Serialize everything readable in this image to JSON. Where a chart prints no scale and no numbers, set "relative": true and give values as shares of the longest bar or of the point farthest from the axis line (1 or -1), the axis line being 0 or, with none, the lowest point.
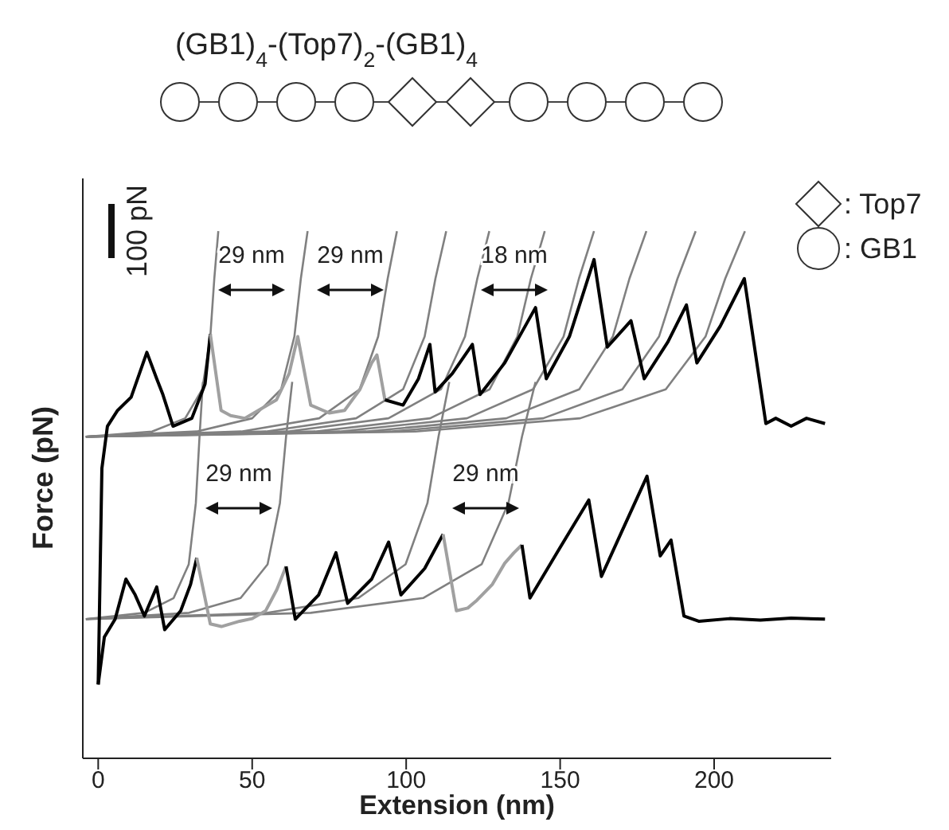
{
  "chart_data": {
    "type": "line",
    "title": "(GB1)$_{4}$-(Top7)$_{2}$-(GB1)$_{4}$",
    "xlabel": "Extension (nm)",
    "ylabel": "Force (pN)",
    "relative": true,
    "xlim": [
      -5,
      238
    ],
    "xticks": [
      0,
      50,
      100,
      150,
      200
    ],
    "grid": false,
    "legend": false,
    "marker": "none",
    "line_style": "solid",
    "annotations": [
      "100 pN",
      ": Top7",
      ": GB1",
      "29 nm",
      "29 nm",
      "18 nm",
      "29 nm",
      "29 nm"
    ],
    "series": [
      {
        "color": "#808080",
        "x": [
          -4,
          17.5,
          28.25,
          33.8,
          36.4,
          37.7,
          39
        ],
        "values": [
          0.61,
          0.62,
          0.645,
          0.7,
          0.8,
          0.91,
          1.0
        ]
      },
      {
        "color": "#808080",
        "x": [
          -4,
          32,
          50,
          59.4,
          63.7,
          65.8,
          68
        ],
        "values": [
          0.61,
          0.62,
          0.645,
          0.7,
          0.8,
          0.91,
          1.0
        ]
      },
      {
        "color": "#808080",
        "x": [
          -4,
          46.5,
          71.75,
          84.9,
          90.9,
          94,
          97
        ],
        "values": [
          0.61,
          0.62,
          0.645,
          0.7,
          0.8,
          0.91,
          1.0
        ]
      },
      {
        "color": "#808080",
        "x": [
          -4,
          54.5,
          83.75,
          99,
          106,
          109.5,
          113
        ],
        "values": [
          0.61,
          0.62,
          0.645,
          0.7,
          0.8,
          0.91,
          1.0
        ]
      },
      {
        "color": "#808080",
        "x": [
          -4,
          61.5,
          94.25,
          111.3,
          119.1,
          123.1,
          127
        ],
        "values": [
          0.61,
          0.62,
          0.645,
          0.7,
          0.8,
          0.91,
          1.0
        ]
      },
      {
        "color": "#808080",
        "x": [
          -4,
          70.5,
          107.75,
          127.1,
          136.1,
          140.5,
          145
        ],
        "values": [
          0.61,
          0.62,
          0.645,
          0.7,
          0.8,
          0.91,
          1.0
        ]
      },
      {
        "color": "#808080",
        "x": [
          -4,
          78.5,
          119.75,
          141.2,
          151.1,
          156.1,
          161
        ],
        "values": [
          0.61,
          0.62,
          0.645,
          0.7,
          0.8,
          0.91,
          1.0
        ]
      },
      {
        "color": "#808080",
        "x": [
          -4,
          87,
          132.5,
          156.2,
          167.1,
          172.5,
          178
        ],
        "values": [
          0.61,
          0.62,
          0.645,
          0.7,
          0.8,
          0.91,
          1.0
        ]
      },
      {
        "color": "#808080",
        "x": [
          -4,
          95,
          144.5,
          170.2,
          182.1,
          188.1,
          194
        ],
        "values": [
          0.61,
          0.62,
          0.645,
          0.7,
          0.8,
          0.91,
          1.0
        ]
      },
      {
        "color": "#808080",
        "x": [
          -4,
          103,
          156.5,
          184.3,
          197.2,
          203.6,
          210
        ],
        "values": [
          0.61,
          0.62,
          0.645,
          0.7,
          0.8,
          0.91,
          1.0
        ]
      },
      {
        "color": "#808080",
        "x": [
          -4,
          15,
          24.5,
          29.4,
          31.7,
          32.9,
          34
        ],
        "values": [
          0.264,
          0.276,
          0.304,
          0.368,
          0.484,
          0.61,
          0.714
        ]
      },
      {
        "color": "#808080",
        "x": [
          -4,
          29.5,
          46.25,
          55,
          59,
          61,
          63
        ],
        "values": [
          0.264,
          0.276,
          0.304,
          0.368,
          0.484,
          0.61,
          0.714
        ]
      },
      {
        "color": "#808080",
        "x": [
          -4,
          55,
          84.5,
          99.8,
          106.9,
          110.5,
          114
        ],
        "values": [
          0.264,
          0.276,
          0.304,
          0.368,
          0.484,
          0.61,
          0.714
        ]
      },
      {
        "color": "#808080",
        "x": [
          -4,
          69,
          105.5,
          124.5,
          133.2,
          137.6,
          142
        ],
        "values": [
          0.264,
          0.276,
          0.304,
          0.368,
          0.484,
          0.61,
          0.714
        ]
      },
      {
        "color": "#000000",
        "x": [
          0,
          1.2,
          3,
          6.3,
          10.7,
          15.8,
          19,
          21,
          24.3,
          30.4,
          34.7,
          36.4
        ],
        "values": [
          0.14,
          0.55,
          0.63,
          0.66,
          0.685,
          0.77,
          0.72,
          0.69,
          0.63,
          0.645,
          0.71,
          0.805
        ]
      },
      {
        "color": "#a0a0a0",
        "x": [
          36.4,
          39.9,
          43,
          47.6,
          52,
          57.9,
          62,
          64.8,
          69,
          75,
          80,
          85,
          88.8,
          90.5,
          93.1
        ],
        "values": [
          0.805,
          0.66,
          0.65,
          0.645,
          0.66,
          0.68,
          0.73,
          0.8,
          0.67,
          0.655,
          0.66,
          0.7,
          0.75,
          0.765,
          0.68
        ]
      },
      {
        "color": "#000000",
        "x": [
          93.1,
          99,
          104,
          107.7,
          109.4,
          115,
          121.5,
          124,
          132,
          142,
          145.5,
          153,
          161,
          165.3,
          173,
          177.3,
          185,
          191,
          194.4,
          202,
          209.8,
          216.8,
          220,
          225,
          230,
          236
        ],
        "values": [
          0.68,
          0.67,
          0.72,
          0.785,
          0.695,
          0.73,
          0.785,
          0.69,
          0.75,
          0.855,
          0.72,
          0.8,
          0.946,
          0.78,
          0.83,
          0.72,
          0.79,
          0.86,
          0.75,
          0.82,
          0.91,
          0.635,
          0.645,
          0.63,
          0.645,
          0.635
        ]
      },
      {
        "color": "#000000",
        "x": [
          0,
          2,
          5.5,
          9,
          12,
          15,
          19,
          21.6,
          26.8,
          30,
          32
        ],
        "values": [
          0.14,
          0.23,
          0.264,
          0.34,
          0.31,
          0.27,
          0.325,
          0.244,
          0.28,
          0.33,
          0.38
        ]
      },
      {
        "color": "#a0a0a0",
        "x": [
          32,
          36.4,
          40,
          45.9,
          50,
          54.4,
          58,
          61
        ],
        "values": [
          0.38,
          0.255,
          0.25,
          0.26,
          0.265,
          0.28,
          0.32,
          0.364
        ]
      },
      {
        "color": "#000000",
        "x": [
          61,
          64,
          71.6,
          77.2,
          81,
          88.8,
          94.3,
          98.3,
          106,
          112
        ],
        "values": [
          0.364,
          0.264,
          0.31,
          0.39,
          0.294,
          0.34,
          0.41,
          0.31,
          0.36,
          0.425
        ]
      },
      {
        "color": "#a0a0a0",
        "x": [
          112,
          116.3,
          120,
          123,
          128,
          132,
          135,
          137.6
        ],
        "values": [
          0.425,
          0.28,
          0.285,
          0.3,
          0.33,
          0.37,
          0.39,
          0.405
        ]
      },
      {
        "color": "#000000",
        "x": [
          137.6,
          140.2,
          150,
          159.3,
          163.4,
          170,
          178.2,
          182.5,
          186,
          190.2,
          195,
          205,
          215,
          225,
          236
        ],
        "values": [
          0.405,
          0.304,
          0.4,
          0.49,
          0.345,
          0.43,
          0.535,
          0.384,
          0.414,
          0.27,
          0.26,
          0.265,
          0.262,
          0.266,
          0.264
        ]
      }
    ]
  }
}
